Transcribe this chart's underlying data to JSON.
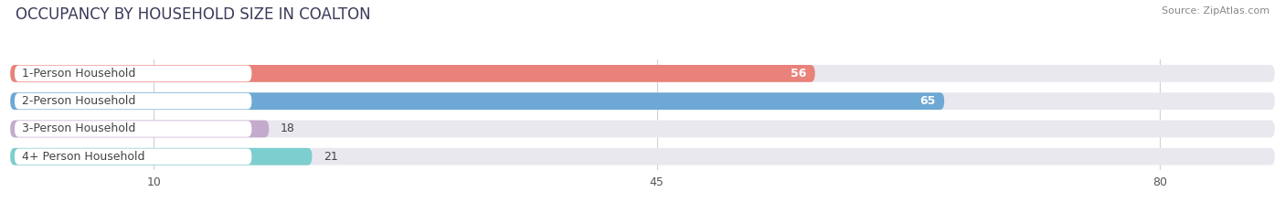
{
  "title": "OCCUPANCY BY HOUSEHOLD SIZE IN COALTON",
  "source": "Source: ZipAtlas.com",
  "categories": [
    "1-Person Household",
    "2-Person Household",
    "3-Person Household",
    "4+ Person Household"
  ],
  "values": [
    56,
    65,
    18,
    21
  ],
  "bar_colors": [
    "#E8827A",
    "#6EA8D5",
    "#C4AACC",
    "#7DCECE"
  ],
  "label_colors": [
    "white",
    "white",
    "dark",
    "dark"
  ],
  "xlim_max": 88,
  "xticks": [
    10,
    45,
    80
  ],
  "background_color": "#ffffff",
  "bar_track_color": "#e8e8ee",
  "grid_color": "#d0d0d8",
  "title_fontsize": 12,
  "source_fontsize": 8,
  "label_fontsize": 9,
  "value_fontsize": 9
}
